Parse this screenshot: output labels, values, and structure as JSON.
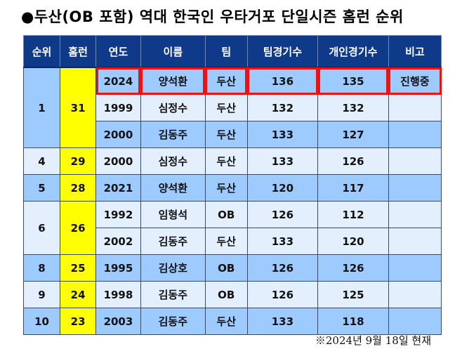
{
  "title": "●두산(OB 포함) 역대 한국인 우타거포 단일시즌 홈런 순위",
  "headers": [
    "순위",
    "홈런",
    "연도",
    "이름",
    "팀",
    "팀경기수",
    "개인경기수",
    "비고"
  ],
  "groups": [
    {
      "rank": "1",
      "hr": "31",
      "rows": [
        {
          "year": "2024",
          "name": "양석환",
          "team": "두산",
          "team_games": "136",
          "games": "135",
          "note": "진행중"
        },
        {
          "year": "1999",
          "name": "심정수",
          "team": "두산",
          "team_games": "132",
          "games": "132",
          "note": ""
        },
        {
          "year": "2000",
          "name": "김동주",
          "team": "두산",
          "team_games": "133",
          "games": "127",
          "note": ""
        }
      ]
    },
    {
      "rank": "4",
      "hr": "29",
      "rows": [
        {
          "year": "2000",
          "name": "심정수",
          "team": "두산",
          "team_games": "133",
          "games": "126",
          "note": ""
        }
      ]
    },
    {
      "rank": "5",
      "hr": "28",
      "rows": [
        {
          "year": "2021",
          "name": "양석환",
          "team": "두산",
          "team_games": "120",
          "games": "117",
          "note": ""
        }
      ]
    },
    {
      "rank": "6",
      "hr": "26",
      "rows": [
        {
          "year": "1992",
          "name": "임형석",
          "team": "OB",
          "team_games": "126",
          "games": "112",
          "note": ""
        },
        {
          "year": "2002",
          "name": "김동주",
          "team": "두산",
          "team_games": "133",
          "games": "120",
          "note": ""
        }
      ]
    },
    {
      "rank": "8",
      "hr": "25",
      "rows": [
        {
          "year": "1995",
          "name": "김상호",
          "team": "OB",
          "team_games": "126",
          "games": "126",
          "note": ""
        }
      ]
    },
    {
      "rank": "9",
      "hr": "24",
      "rows": [
        {
          "year": "1998",
          "name": "김동주",
          "team": "OB",
          "team_games": "126",
          "games": "125",
          "note": ""
        }
      ]
    },
    {
      "rank": "10",
      "hr": "23",
      "rows": [
        {
          "year": "2003",
          "name": "김동주",
          "team": "두산",
          "team_games": "133",
          "games": "118",
          "note": ""
        }
      ]
    }
  ],
  "footnote": "※2024년 9월 18일 현재"
}
